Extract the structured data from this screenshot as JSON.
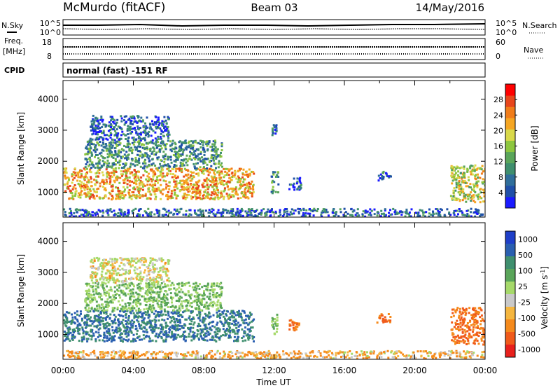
{
  "header": {
    "station": "McMurdo (fitACF)",
    "beam": "Beam 03",
    "date": "14/May/2016"
  },
  "noise_panel": {
    "left_label": "N.Sky",
    "right_label": "N.Search",
    "right_ticks": [
      "10^5",
      "10^0"
    ]
  },
  "freq_panel": {
    "left_label_top": "Freq.",
    "left_label_unit": "[MHz]",
    "left_ticks": [
      "18",
      "8"
    ],
    "right_label": "Nave",
    "right_ticks": [
      "60",
      "0"
    ]
  },
  "cpid": {
    "label": "CPID",
    "text": "normal (fast) -151 RF"
  },
  "x_axis": {
    "label": "Time UT",
    "ticks": [
      "00:00",
      "04:00",
      "08:00",
      "12:00",
      "16:00",
      "20:00",
      "00:00"
    ]
  },
  "colors": {
    "power": [
      "#1a1aff",
      "#1f4fa8",
      "#2f6e9a",
      "#3f8f6e",
      "#5aa55a",
      "#8dc63f",
      "#d9d94a",
      "#f5a623",
      "#f07c1a",
      "#e8461c",
      "#ff0000"
    ],
    "velocity": [
      "#e8201c",
      "#f05a1a",
      "#f58a1c",
      "#f5b63f",
      "#c9c9c9",
      "#a6d96a",
      "#5aa55a",
      "#3f8f6e",
      "#2a5fb0",
      "#1f3fc8"
    ]
  },
  "chart_data": [
    {
      "type": "heatmap",
      "title": "",
      "ylabel": "Slant Range [km]",
      "xlabel": "",
      "x_range_hours": [
        0,
        24
      ],
      "ylim": [
        200,
        4600
      ],
      "y_ticks": [
        1000,
        2000,
        3000,
        4000
      ],
      "colorbar": {
        "label": "Power [dB]",
        "range": [
          0,
          32
        ],
        "ticks": [
          4,
          8,
          12,
          16,
          20,
          24,
          28
        ]
      },
      "echo_regions": [
        {
          "start": 0.0,
          "end": 10.8,
          "rmin": 800,
          "rmax": 1800,
          "val": 22
        },
        {
          "start": 1.2,
          "end": 9.0,
          "rmin": 1800,
          "rmax": 2700,
          "val": 10
        },
        {
          "start": 1.5,
          "end": 6.0,
          "rmin": 2700,
          "rmax": 3500,
          "val": 6
        },
        {
          "start": 11.8,
          "end": 12.2,
          "rmin": 1000,
          "rmax": 1700,
          "val": 10
        },
        {
          "start": 11.8,
          "end": 12.1,
          "rmin": 2800,
          "rmax": 3200,
          "val": 8
        },
        {
          "start": 12.8,
          "end": 13.5,
          "rmin": 1100,
          "rmax": 1500,
          "val": 6
        },
        {
          "start": 17.8,
          "end": 18.6,
          "rmin": 1400,
          "rmax": 1700,
          "val": 6
        },
        {
          "start": 22.0,
          "end": 24.0,
          "rmin": 700,
          "rmax": 1900,
          "val": 18
        },
        {
          "start": 0.0,
          "end": 24.0,
          "rmin": 250,
          "rmax": 500,
          "val": 6
        }
      ]
    },
    {
      "type": "heatmap",
      "title": "",
      "ylabel": "Slant Range [km]",
      "xlabel": "Time UT",
      "x_range_hours": [
        0,
        24
      ],
      "ylim": [
        200,
        4600
      ],
      "y_ticks": [
        1000,
        2000,
        3000,
        4000
      ],
      "colorbar": {
        "label": "Velocity [m s-1]",
        "range": [
          -1000,
          1000
        ],
        "ticks": [
          "1000",
          "500",
          "100",
          "25",
          "-25",
          "-100",
          "-500",
          "-1000"
        ]
      },
      "echo_regions": [
        {
          "start": 0.0,
          "end": 10.8,
          "rmin": 800,
          "rmax": 1800,
          "val": 500
        },
        {
          "start": 1.2,
          "end": 9.0,
          "rmin": 1800,
          "rmax": 2700,
          "val": 100
        },
        {
          "start": 1.5,
          "end": 6.0,
          "rmin": 2700,
          "rmax": 3500,
          "val": 25
        },
        {
          "start": 11.8,
          "end": 12.2,
          "rmin": 1000,
          "rmax": 1700,
          "val": 100
        },
        {
          "start": 12.8,
          "end": 13.5,
          "rmin": 1100,
          "rmax": 1500,
          "val": -100
        },
        {
          "start": 17.8,
          "end": 18.6,
          "rmin": 1400,
          "rmax": 1700,
          "val": -100
        },
        {
          "start": 22.0,
          "end": 24.0,
          "rmin": 700,
          "rmax": 1900,
          "val": -100
        },
        {
          "start": 0.0,
          "end": 24.0,
          "rmin": 250,
          "rmax": 500,
          "val": -25
        }
      ]
    }
  ]
}
